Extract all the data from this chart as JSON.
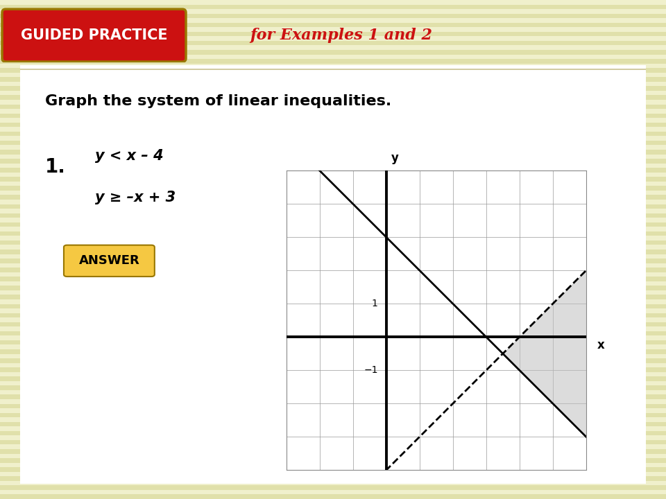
{
  "bg_color": "#f0f0cc",
  "stripe_color": "#e0e0aa",
  "header_bg": "#cc1111",
  "header_text": "GUIDED PRACTICE",
  "header_text_color": "#ffffff",
  "subtitle_text": "for Examples 1 and 2",
  "subtitle_color": "#cc1111",
  "main_text": "Graph the system of linear inequalities.",
  "problem_number": "1.",
  "ineq1_text": "y < x – 4",
  "ineq2_text": "y ≥ –x + 3",
  "answer_text": "ANSWER",
  "answer_bg": "#f5c842",
  "graph_xlim": [
    -3,
    6
  ],
  "graph_ylim": [
    -4,
    5
  ],
  "line1_slope": 1,
  "line1_intercept": -4,
  "line1_style": "--",
  "line2_slope": -1,
  "line2_intercept": 3,
  "line2_style": "-",
  "shade_color": "#c0c0c0",
  "shade_alpha": 0.55,
  "axis_label_x": "x",
  "axis_label_y": "y",
  "tick_label_neg1": "−1",
  "tick_label_1": "1"
}
